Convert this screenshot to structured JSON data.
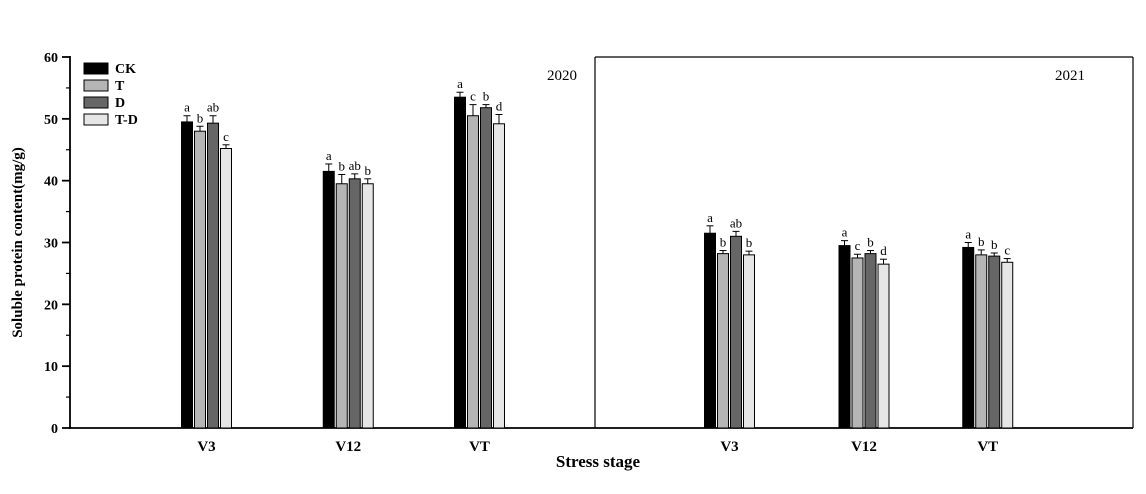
{
  "chart_data": {
    "type": "bar",
    "title": "",
    "ylabel": "Soluble protein content(mg/g)",
    "xlabel": "Stress stage",
    "ylim": [
      0,
      60
    ],
    "yticks": [
      0,
      10,
      20,
      30,
      40,
      50,
      60
    ],
    "minor_tick_step": 5,
    "grid": false,
    "legend_position": "top-left-inside",
    "legend": [
      {
        "name": "CK",
        "color": "#000000"
      },
      {
        "name": "T",
        "color": "#b5b5b5"
      },
      {
        "name": "D",
        "color": "#666666"
      },
      {
        "name": "T-D",
        "color": "#e6e6e6"
      }
    ],
    "panels": [
      {
        "year": "2020",
        "categories": [
          "V3",
          "V12",
          "VT"
        ],
        "groups": [
          {
            "category": "V3",
            "values": [
              49.5,
              48.0,
              49.3,
              45.2
            ],
            "errors": [
              1.0,
              0.8,
              1.2,
              0.6
            ],
            "letters": [
              "a",
              "b",
              "ab",
              "c"
            ]
          },
          {
            "category": "V12",
            "values": [
              41.5,
              39.5,
              40.3,
              39.5
            ],
            "errors": [
              1.2,
              1.5,
              0.8,
              0.8
            ],
            "letters": [
              "a",
              "b",
              "ab",
              "b"
            ]
          },
          {
            "category": "VT",
            "values": [
              53.5,
              50.5,
              51.8,
              49.2
            ],
            "errors": [
              0.8,
              1.8,
              0.5,
              1.5
            ],
            "letters": [
              "a",
              "c",
              "b",
              "d"
            ]
          }
        ]
      },
      {
        "year": "2021",
        "categories": [
          "V3",
          "V12",
          "VT"
        ],
        "groups": [
          {
            "category": "V3",
            "values": [
              31.5,
              28.2,
              31.0,
              28.0
            ],
            "errors": [
              1.2,
              0.5,
              0.8,
              0.6
            ],
            "letters": [
              "a",
              "b",
              "ab",
              "b"
            ]
          },
          {
            "category": "V12",
            "values": [
              29.5,
              27.5,
              28.2,
              26.5
            ],
            "errors": [
              0.8,
              0.6,
              0.5,
              0.8
            ],
            "letters": [
              "a",
              "c",
              "b",
              "d"
            ]
          },
          {
            "category": "VT",
            "values": [
              29.2,
              28.0,
              27.8,
              26.8
            ],
            "errors": [
              0.8,
              0.8,
              0.5,
              0.6
            ],
            "letters": [
              "a",
              "b",
              "b",
              "c"
            ]
          }
        ]
      }
    ]
  }
}
